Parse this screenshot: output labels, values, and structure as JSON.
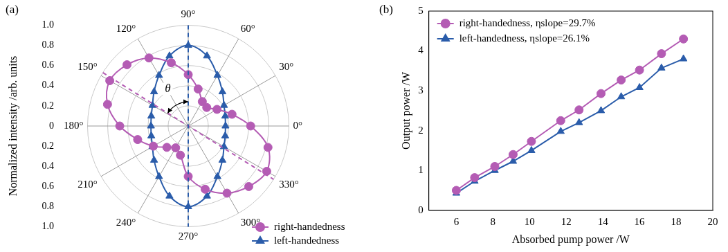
{
  "chart_data": [
    {
      "panel": "(a)",
      "type": "radar",
      "categories": [
        "0°",
        null,
        "30°",
        null,
        "60°",
        null,
        "90°",
        null,
        "120°",
        null,
        "150°",
        null,
        "180°",
        null,
        "210°",
        null,
        "240°",
        null,
        "270°",
        null,
        "300°",
        null,
        "330°",
        null
      ],
      "y_label": "Normalized intensity /arb. units",
      "ylim": [
        0,
        1
      ],
      "yticks": [
        0,
        0.2,
        0.4,
        0.6,
        0.8,
        {
          "value": 1,
          "label": "1.0"
        }
      ],
      "grid": true,
      "legend": "lower right",
      "annotations": [
        {
          "text": "θ"
        }
      ],
      "series": [
        {
          "name": "right-handedness",
          "color": "#b45cb4",
          "marker": "circle",
          "line_style": "solid",
          "axis_angle": 148,
          "values": [
            0.62,
            0.45,
            0.33,
            0.26,
            0.28,
            0.38,
            0.51,
            0.65,
            0.78,
            0.86,
            0.9,
            0.83,
            0.68,
            0.52,
            0.4,
            0.3,
            0.25,
            0.3,
            0.5,
            0.65,
            0.77,
            0.85,
            0.9,
            0.82
          ]
        },
        {
          "name": "left-handedness",
          "color": "#2a5caa",
          "marker": "triangle",
          "line_style": "solid",
          "axis_angle": 90,
          "values": [
            0.37,
            0.38,
            0.41,
            0.48,
            0.58,
            0.72,
            0.8,
            0.72,
            0.58,
            0.48,
            0.41,
            0.38,
            0.37,
            0.38,
            0.41,
            0.48,
            0.58,
            0.72,
            0.8,
            0.72,
            0.58,
            0.48,
            0.41,
            0.38
          ]
        }
      ]
    },
    {
      "panel": "(b)",
      "type": "line",
      "x_label": "Absorbed pump power /W",
      "y_label": "Output power /W",
      "xlim": [
        4.5,
        20
      ],
      "xticks": [
        6,
        8,
        10,
        12,
        14,
        16,
        18,
        20
      ],
      "ylim": [
        0,
        5
      ],
      "yticks": [
        0,
        1,
        2,
        3,
        4,
        5
      ],
      "grid": false,
      "legend": "upper left",
      "x": [
        6,
        7,
        8.1,
        9.1,
        10.1,
        11.7,
        12.7,
        13.9,
        15,
        16,
        17.2,
        18.4
      ],
      "series": [
        {
          "name": "right-handedness, ηslope=29.7%",
          "color": "#b45cb4",
          "marker": "circle",
          "line_style": "solid",
          "values": [
            0.5,
            0.82,
            1.1,
            1.4,
            1.73,
            2.25,
            2.52,
            2.93,
            3.27,
            3.52,
            3.93,
            4.3
          ]
        },
        {
          "name": "left-handedness, ηslope=26.1%",
          "color": "#2a5caa",
          "marker": "triangle",
          "line_style": "solid",
          "values": [
            0.43,
            0.73,
            1.0,
            1.23,
            1.5,
            1.98,
            2.2,
            2.5,
            2.85,
            3.08,
            3.57,
            3.8
          ]
        }
      ]
    }
  ]
}
